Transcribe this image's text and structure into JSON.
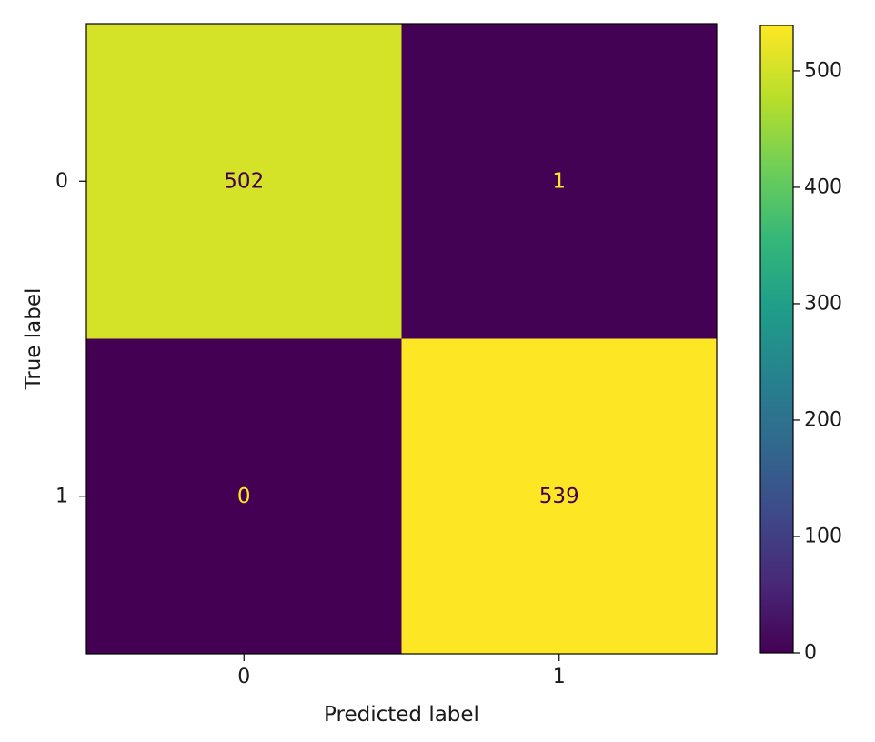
{
  "chart_data": {
    "type": "heatmap",
    "title": "",
    "xlabel": "Predicted label",
    "ylabel": "True label",
    "x_categories": [
      "0",
      "1"
    ],
    "y_categories": [
      "0",
      "1"
    ],
    "matrix": [
      [
        502,
        1
      ],
      [
        0,
        539
      ]
    ],
    "colormap": "viridis",
    "value_range": [
      0,
      539
    ],
    "colorbar": {
      "ticks": [
        0,
        100,
        200,
        300,
        400,
        500
      ],
      "tick_labels": [
        "0",
        "100",
        "200",
        "300",
        "400",
        "500"
      ]
    },
    "colors": {
      "low": "#440154",
      "high": "#fde725",
      "cell_text_dark_bg": "#fde725",
      "cell_text_light_bg": "#440154"
    }
  }
}
